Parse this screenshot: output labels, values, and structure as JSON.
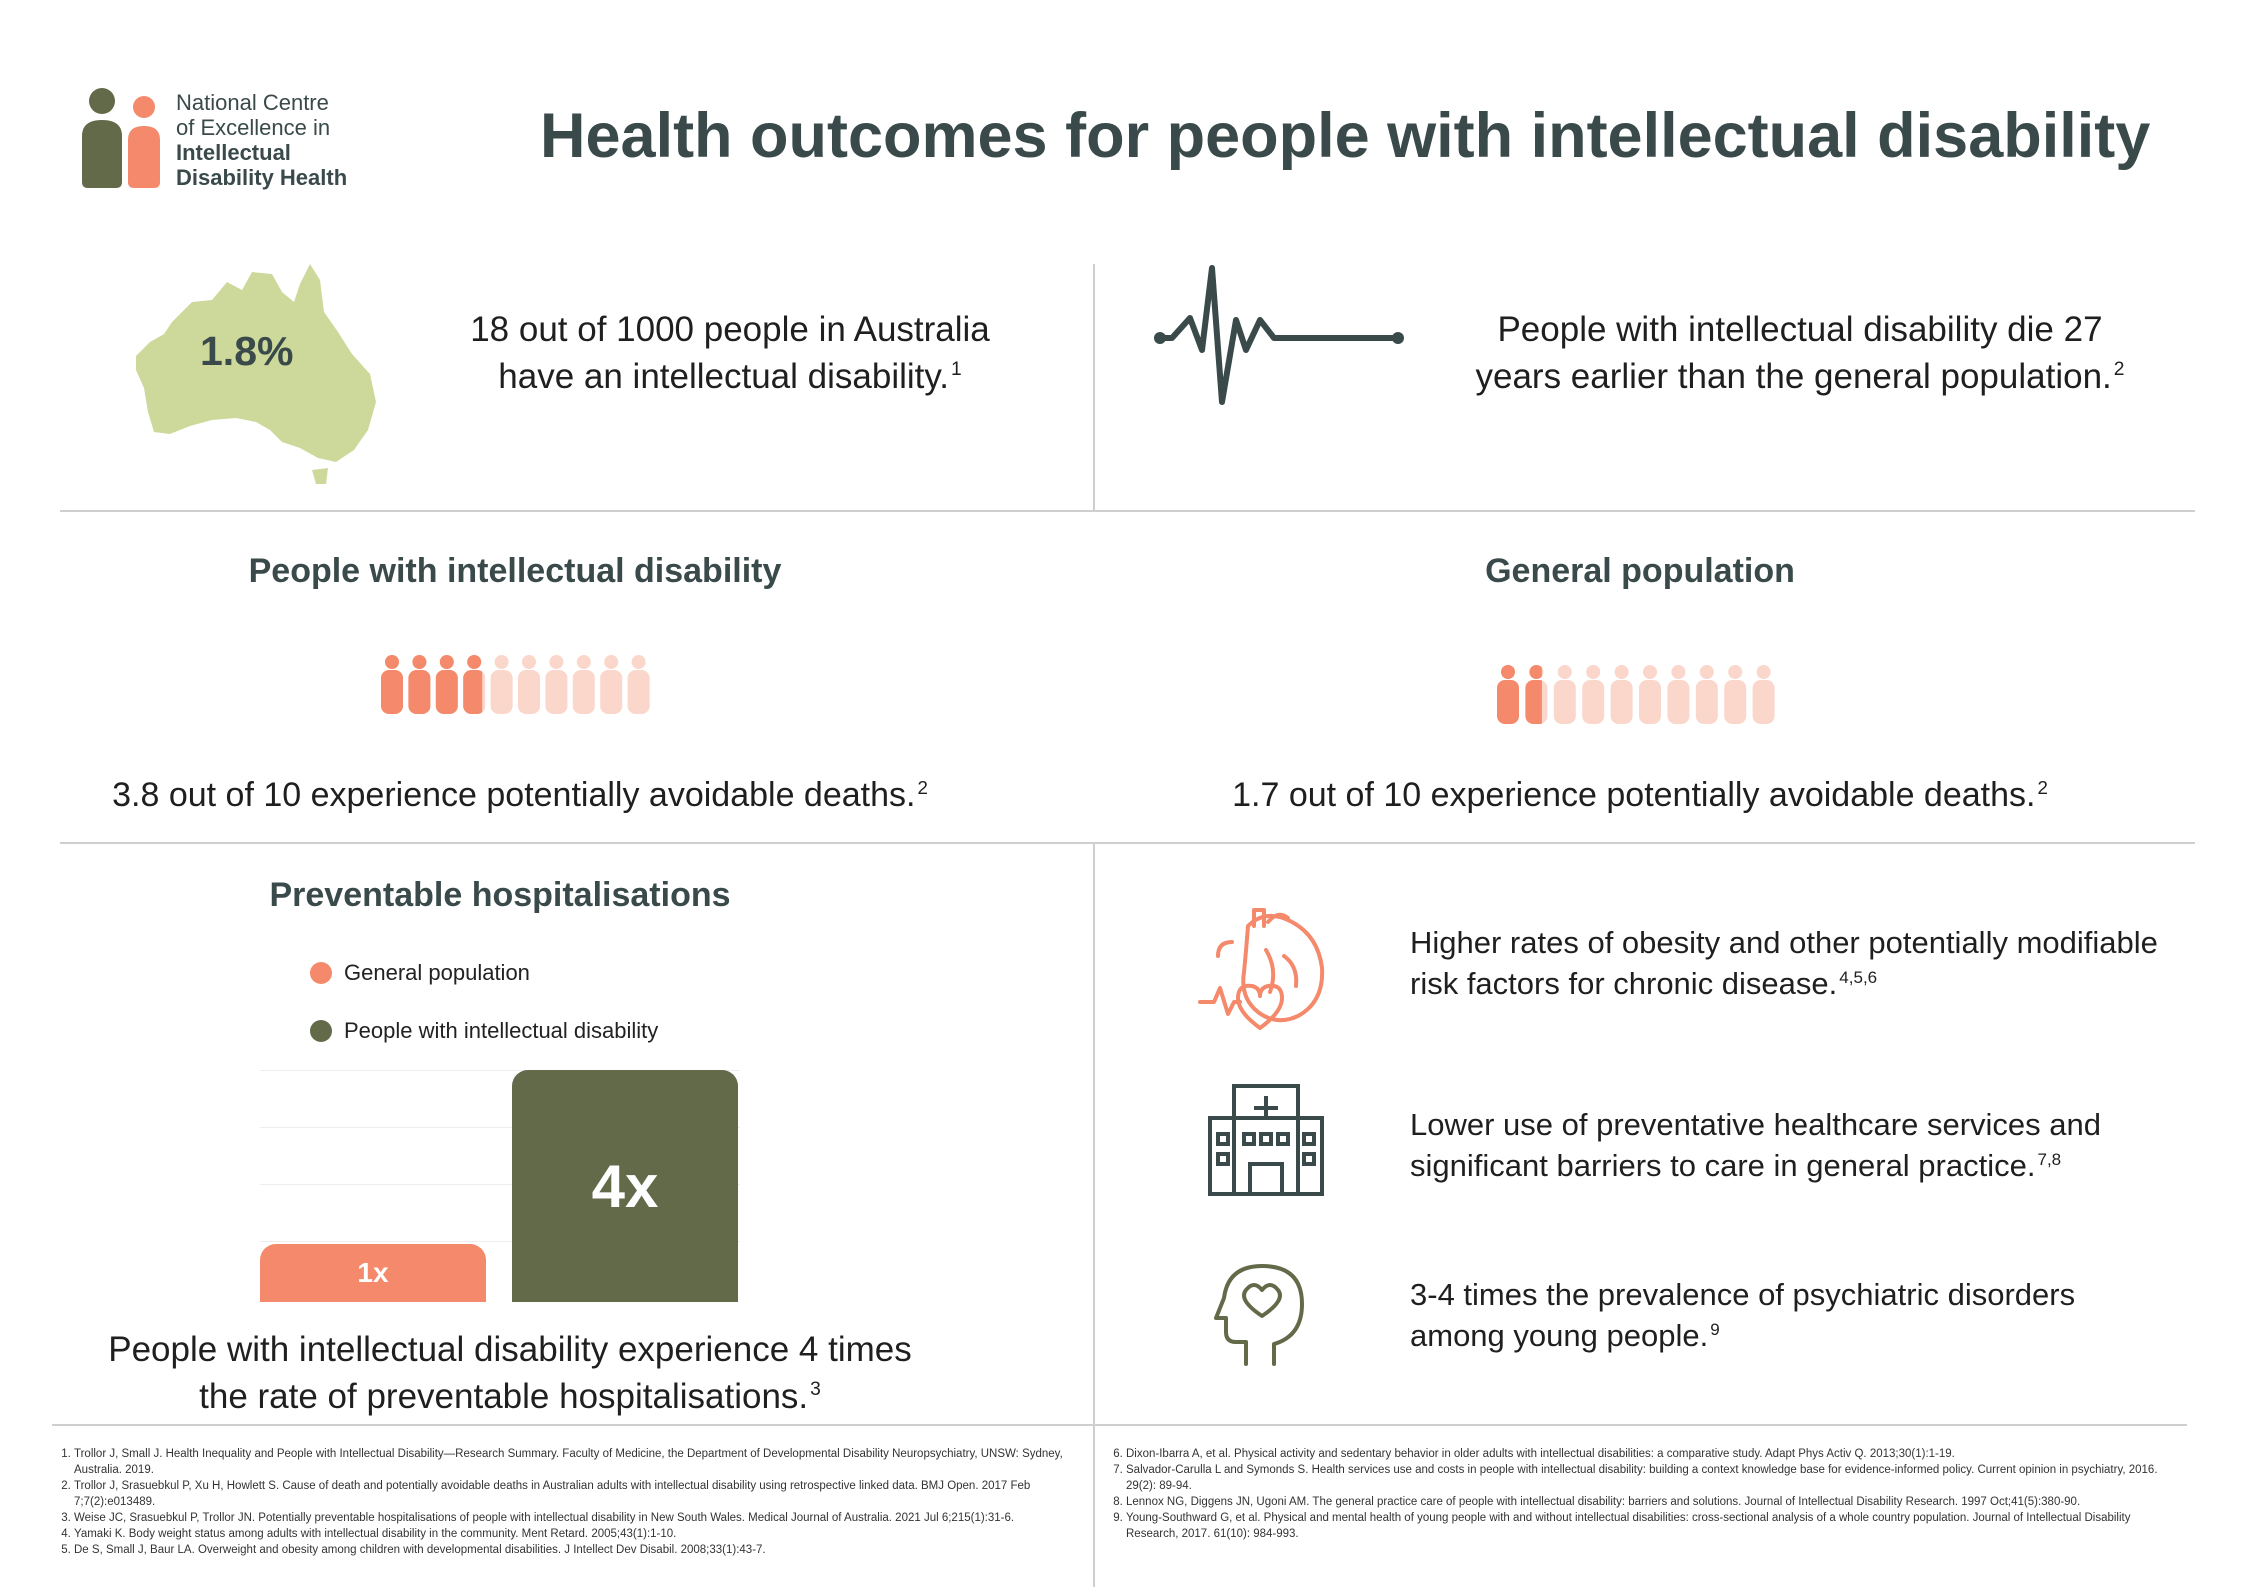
{
  "header": {
    "title": "Health outcomes for people with intellectual disability",
    "logo": {
      "line1": "National Centre",
      "line2": "of Excellence in",
      "line3": "Intellectual",
      "line4": "Disability Health"
    }
  },
  "prevalence": {
    "map_value": "1.8%",
    "text_line1": "18 out of 1000 people in Australia",
    "text_line2": "have an intellectual disability.",
    "ref": "1"
  },
  "life_expectancy": {
    "text_line1": "People with intellectual disability die 27",
    "text_line2": "years earlier than the general population.",
    "ref": "2"
  },
  "avoidable_deaths": {
    "left_heading": "People with intellectual disability",
    "left_text": "3.8 out of 10 experience potentially avoidable deaths.",
    "left_ref": "2",
    "left_value": 3.8,
    "right_heading": "General population",
    "right_text": "1.7 out of 10 experience potentially avoidable deaths.",
    "right_ref": "2",
    "right_value": 1.7,
    "total": 10
  },
  "hospitalisations": {
    "heading": "Preventable hospitalisations",
    "legend": [
      "General population",
      "People with intellectual disability"
    ],
    "bars": [
      {
        "label": "1x",
        "value": 1,
        "color": "#f4896b"
      },
      {
        "label": "4x",
        "value": 4,
        "color": "#636a4a"
      }
    ],
    "text_line1": "People with intellectual disability experience 4 times",
    "text_line2": "the rate of preventable hospitalisations.",
    "ref": "3"
  },
  "risk_items": [
    {
      "icon": "heart-icon",
      "line1": "Higher rates of obesity and other potentially modifiable",
      "line2": "risk factors for chronic disease.",
      "ref": "4,5,6"
    },
    {
      "icon": "hospital-icon",
      "line1": "Lower use of preventative healthcare services and",
      "line2": "significant barriers to care in general practice.",
      "ref": "7,8"
    },
    {
      "icon": "mind-heart-icon",
      "line1": "3-4 times the prevalence of psychiatric disorders",
      "line2": "among young people.",
      "ref": "9"
    }
  ],
  "references_left": [
    "Trollor J, Small J. Health Inequality and People with Intellectual Disability—Research Summary. Faculty of Medicine, the Department of Developmental Disability Neuropsychiatry, UNSW: Sydney, Australia. 2019.",
    "Trollor J, Srasuebkul P, Xu H, Howlett S. Cause of death and potentially avoidable deaths in Australian adults with intellectual disability using retrospective linked data. BMJ Open. 2017 Feb 7;7(2):e013489.",
    "Weise JC, Srasuebkul P, Trollor JN. Potentially preventable hospitalisations of people with intellectual disability in New South Wales. Medical Journal of Australia. 2021 Jul 6;215(1):31-6.",
    "Yamaki K. Body weight status among adults with intellectual disability in the community. Ment Retard. 2005;43(1):1-10.",
    "De S, Small J, Baur LA. Overweight and obesity among children with developmental disabilities. J Intellect Dev Disabil. 2008;33(1):43-7."
  ],
  "references_right": [
    "Dixon-Ibarra A, et al. Physical activity and sedentary behavior in older adults with intellectual disabilities: a comparative study. Adapt Phys Activ Q. 2013;30(1):1-19.",
    "Salvador-Carulla L and Symonds S. Health services use and costs in people with intellectual disability: building a context knowledge base for evidence-informed policy. Current opinion in psychiatry, 2016. 29(2): 89-94.",
    "Lennox NG, Diggens JN, Ugoni AM. The general practice care of people with intellectual disability: barriers and solutions. Journal of Intellectual Disability Research. 1997 Oct;41(5):380-90.",
    "Young-Southward G, et al. Physical and mental health of young people with and without intellectual disabilities: cross-sectional analysis of a whole country population. Journal of Intellectual Disability Research, 2017. 61(10): 984-993."
  ],
  "colors": {
    "coral": "#f4896b",
    "coral_light": "#fbd7cb",
    "olive": "#636a4a",
    "map_green": "#cdd99a",
    "dark_slate": "#3a4a4a"
  }
}
